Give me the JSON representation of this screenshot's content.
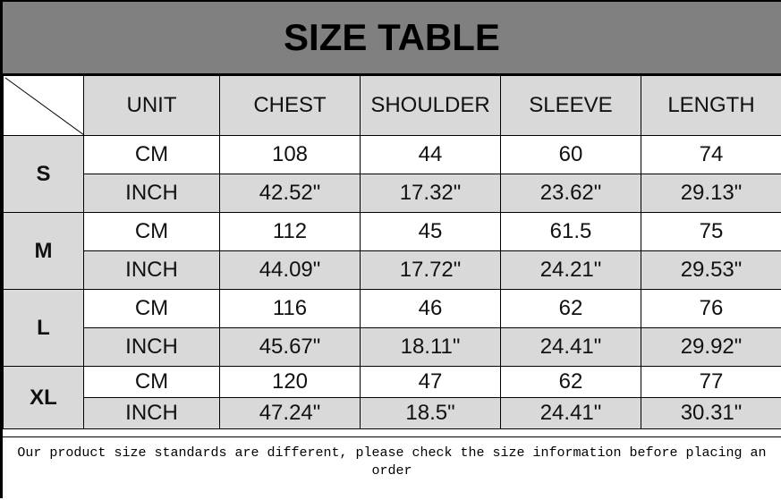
{
  "title": "SIZE TABLE",
  "headers": [
    "UNIT",
    "CHEST",
    "SHOULDER",
    "SLEEVE",
    "LENGTH"
  ],
  "rows": [
    {
      "size": "S",
      "cm": {
        "unit": "CM",
        "values": [
          "108",
          "44",
          "60",
          "74"
        ]
      },
      "inch": {
        "unit": "INCH",
        "values": [
          "42.52\"",
          "17.32\"",
          "23.62\"",
          "29.13\""
        ]
      }
    },
    {
      "size": "M",
      "cm": {
        "unit": "CM",
        "values": [
          "112",
          "45",
          "61.5",
          "75"
        ]
      },
      "inch": {
        "unit": "INCH",
        "values": [
          "44.09\"",
          "17.72\"",
          "24.21\"",
          "29.53\""
        ]
      }
    },
    {
      "size": "L",
      "cm": {
        "unit": "CM",
        "values": [
          "116",
          "46",
          "62",
          "76"
        ]
      },
      "inch": {
        "unit": "INCH",
        "values": [
          "45.67\"",
          "18.11\"",
          "24.41\"",
          "29.92\""
        ]
      }
    },
    {
      "size": "XL",
      "cm": {
        "unit": "CM",
        "values": [
          "120",
          "47",
          "62",
          "77"
        ]
      },
      "inch": {
        "unit": "INCH",
        "values": [
          "47.24\"",
          "18.5\"",
          "24.41\"",
          "30.31\""
        ]
      }
    }
  ],
  "footer": "Our product size standards are different, please check the size information before placing an order",
  "colors": {
    "title_bg": "#808080",
    "cell_gray": "#d9d9d9"
  }
}
